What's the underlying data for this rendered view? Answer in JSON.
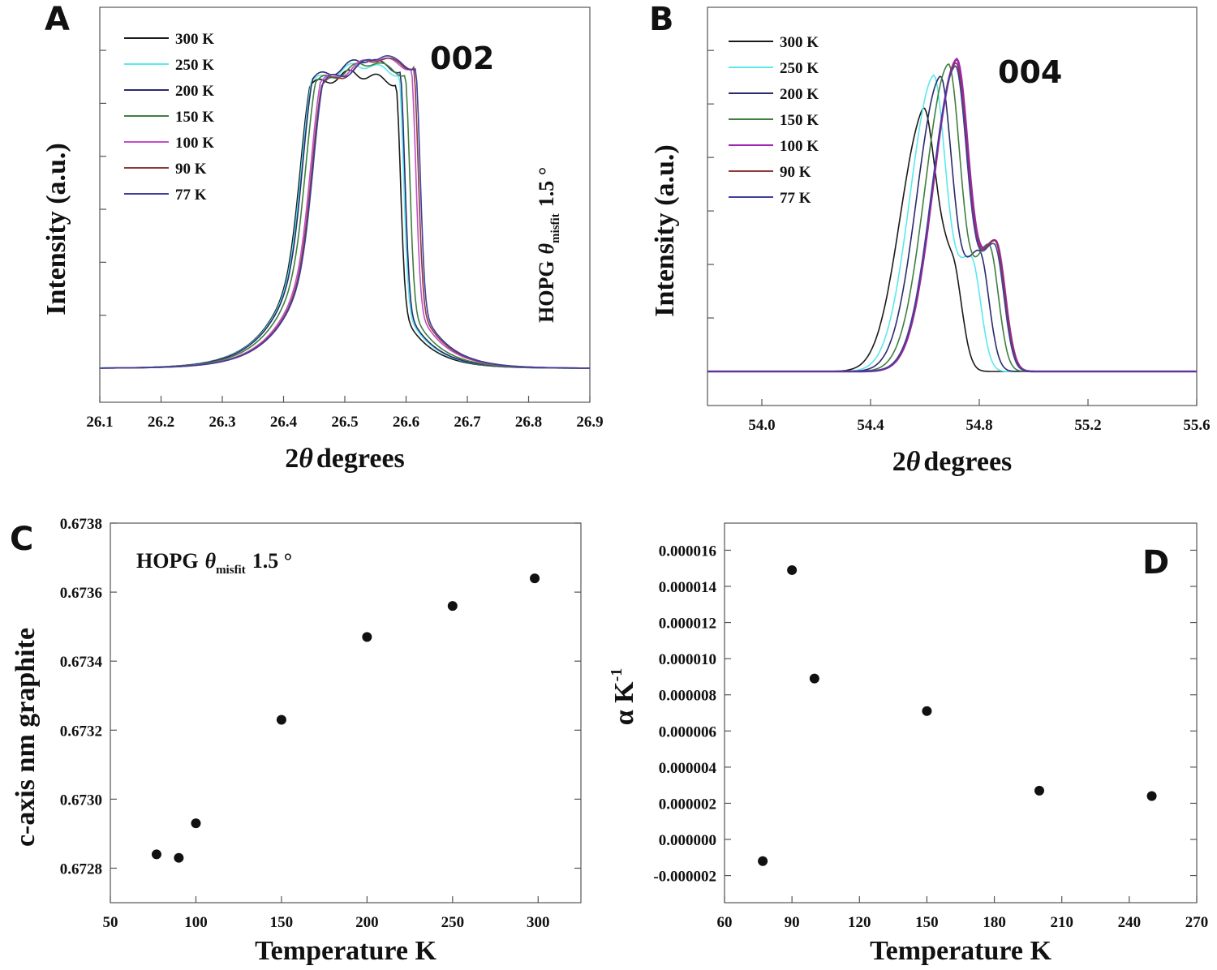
{
  "chart_data": [
    {
      "id": "A",
      "type": "line",
      "panel_label": "A",
      "annotation": "002",
      "sample_text": {
        "main": "HOPG",
        "theta": "θ",
        "sub": "misfit",
        "value": "1.5 °"
      },
      "xlabel": {
        "prefix": "2",
        "theta": "θ",
        "rest": "degrees"
      },
      "ylabel": "Intensity (a.u.)",
      "xlim": [
        26.1,
        26.9
      ],
      "xticks": [
        "26.1",
        "26.2",
        "26.3",
        "26.4",
        "26.5",
        "26.6",
        "26.7",
        "26.8",
        "26.9"
      ],
      "ylim": [
        0,
        1
      ],
      "series": [
        {
          "name": "300 K",
          "color": "#1a1a1a",
          "left": 26.443,
          "right": 26.583,
          "peak": 0.9,
          "plateau": [
            0.86,
            0.9,
            0.87
          ]
        },
        {
          "name": "250 K",
          "color": "#5ce8ec",
          "left": 26.445,
          "right": 26.588,
          "peak": 0.93,
          "plateau": [
            0.87,
            0.92,
            0.9
          ]
        },
        {
          "name": "200 K",
          "color": "#2a2a6e",
          "left": 26.447,
          "right": 26.59,
          "peak": 0.95,
          "plateau": [
            0.88,
            0.93,
            0.91
          ]
        },
        {
          "name": "150 K",
          "color": "#3f7f3f",
          "left": 26.452,
          "right": 26.598,
          "peak": 0.94,
          "plateau": [
            0.87,
            0.92,
            0.9
          ]
        },
        {
          "name": "100 K",
          "color": "#c04fc8",
          "left": 26.46,
          "right": 26.608,
          "peak": 0.95,
          "plateau": [
            0.87,
            0.93,
            0.92
          ]
        },
        {
          "name": "90 K",
          "color": "#8b3a3a",
          "left": 26.462,
          "right": 26.612,
          "peak": 0.95,
          "plateau": [
            0.86,
            0.93,
            0.92
          ]
        },
        {
          "name": "77 K",
          "color": "#3e3e9e",
          "left": 26.464,
          "right": 26.615,
          "peak": 0.96,
          "plateau": [
            0.87,
            0.93,
            0.92
          ]
        }
      ]
    },
    {
      "id": "B",
      "type": "line",
      "panel_label": "B",
      "annotation": "004",
      "xlabel": {
        "prefix": "2",
        "theta": "θ",
        "rest": "degrees"
      },
      "ylabel": "Intensity (a.u.)",
      "xlim": [
        53.8,
        55.6
      ],
      "xticks": [
        "54.0",
        "54.4",
        "54.8",
        "55.2",
        "55.6"
      ],
      "ylim": [
        0,
        1
      ],
      "series": [
        {
          "name": "300 K",
          "color": "#1a1a1a",
          "p1": 54.59,
          "p2": 54.7,
          "h1": 0.73,
          "h2": 0.32
        },
        {
          "name": "250 K",
          "color": "#5ce8ec",
          "p1": 54.63,
          "p2": 54.77,
          "h1": 0.87,
          "h2": 0.34
        },
        {
          "name": "200 K",
          "color": "#2a2a6e",
          "p1": 54.655,
          "p2": 54.8,
          "h1": 0.87,
          "h2": 0.36
        },
        {
          "name": "150 K",
          "color": "#3f7f3f",
          "p1": 54.685,
          "p2": 54.835,
          "h1": 0.91,
          "h2": 0.38
        },
        {
          "name": "100 K",
          "color": "#9c27b0",
          "p1": 54.715,
          "p2": 54.86,
          "h1": 0.92,
          "h2": 0.39
        },
        {
          "name": "90 K",
          "color": "#8b3a3a",
          "p1": 54.712,
          "p2": 54.858,
          "h1": 0.91,
          "h2": 0.39
        },
        {
          "name": "77 K",
          "color": "#3e3e9e",
          "p1": 54.71,
          "p2": 54.855,
          "h1": 0.9,
          "h2": 0.38
        }
      ]
    },
    {
      "id": "C",
      "type": "scatter",
      "panel_label": "C",
      "sample_text": {
        "main": "HOPG",
        "theta": "θ",
        "sub": "misfit",
        "value": "1.5 °"
      },
      "xlabel": "Temperature K",
      "ylabel": "c-axis nm graphite",
      "xlim": [
        50,
        325
      ],
      "ylim": [
        0.6727,
        0.6738
      ],
      "xticks": [
        50,
        100,
        150,
        200,
        250,
        300
      ],
      "yticks": [
        0.6728,
        0.673,
        0.6732,
        0.6734,
        0.6736,
        0.6738
      ],
      "xticklabels": [
        "50",
        "100",
        "150",
        "200",
        "250",
        "300"
      ],
      "yticklabels": [
        "0.6728",
        "0.6730",
        "0.6732",
        "0.6734",
        "0.6736",
        "0.6738"
      ],
      "points": [
        [
          77,
          0.67284
        ],
        [
          90,
          0.67283
        ],
        [
          100,
          0.67293
        ],
        [
          150,
          0.67323
        ],
        [
          200,
          0.67347
        ],
        [
          250,
          0.67356
        ],
        [
          298,
          0.67364
        ]
      ]
    },
    {
      "id": "D",
      "type": "scatter",
      "panel_label": "D",
      "xlabel": "Temperature K",
      "ylabel": {
        "main": "α K",
        "sup": "-1"
      },
      "xlim": [
        60,
        270
      ],
      "ylim": [
        -3.5e-06,
        1.75e-05
      ],
      "xticks": [
        60,
        90,
        120,
        150,
        180,
        210,
        240,
        270
      ],
      "yticks": [
        -2e-06,
        0,
        2e-06,
        4e-06,
        6e-06,
        8e-06,
        1e-05,
        1.2e-05,
        1.4e-05,
        1.6e-05
      ],
      "xticklabels": [
        "60",
        "90",
        "120",
        "150",
        "180",
        "210",
        "240",
        "270"
      ],
      "yticklabels": [
        "-0.000002",
        "0.000000",
        "0.000002",
        "0.000004",
        "0.000006",
        "0.000008",
        "0.000010",
        "0.000012",
        "0.000014",
        "0.000016"
      ],
      "points": [
        [
          77,
          -1.2e-06
        ],
        [
          90,
          1.49e-05
        ],
        [
          100,
          8.9e-06
        ],
        [
          150,
          7.1e-06
        ],
        [
          200,
          2.7e-06
        ],
        [
          250,
          2.4e-06
        ]
      ]
    }
  ]
}
